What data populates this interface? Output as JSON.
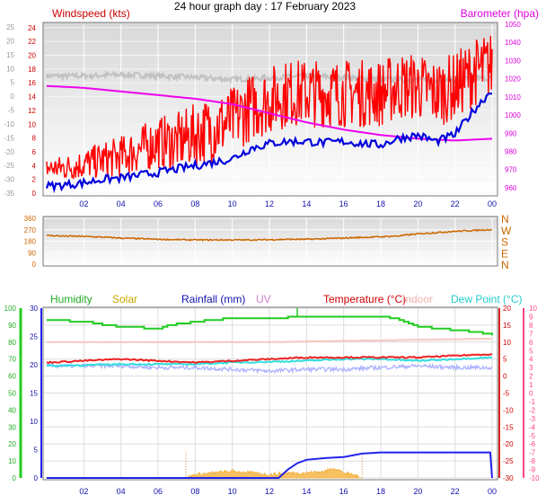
{
  "page_title": "24 hour graph day : 17 February 2023",
  "chart_data": [
    {
      "type": "line",
      "panel": "wind-baro",
      "title": "24 hour graph day : 17 February 2023",
      "x_ticks": [
        "02",
        "04",
        "06",
        "08",
        "10",
        "12",
        "14",
        "16",
        "18",
        "20",
        "22",
        "00"
      ],
      "left_axis": {
        "label": "Windspeed (kts)",
        "ticks": [
          "0",
          "2",
          "4",
          "6",
          "8",
          "10",
          "12",
          "14",
          "16",
          "18",
          "20",
          "22",
          "24"
        ],
        "range": [
          0,
          24.5
        ]
      },
      "outer_left_axis": {
        "ticks": [
          "-35",
          "-30",
          "-25",
          "-20",
          "-15",
          "-10",
          "-5",
          "0",
          "5",
          "10",
          "15",
          "20",
          "25"
        ],
        "range": [
          -35,
          26
        ]
      },
      "right_axis": {
        "label": "Barometer (hpa)",
        "ticks": [
          "960",
          "970",
          "980",
          "990",
          "1000",
          "1010",
          "1020",
          "1030",
          "1040",
          "1050"
        ],
        "range": [
          957,
          1050
        ]
      },
      "series": [
        {
          "name": "Windspeed (kts)",
          "role": "gust",
          "color": "#ff0000",
          "x": [
            0.0,
            1.0,
            2.0,
            3.0,
            4.0,
            5.0,
            6.0,
            7.0,
            8.0,
            9.0,
            10.0,
            11.0,
            12.0,
            13.0,
            14.0,
            15.0,
            16.0,
            17.0,
            18.0,
            19.0,
            20.0,
            21.0,
            22.0,
            23.0,
            24.0
          ],
          "y": [
            3.5,
            3.5,
            4,
            4.5,
            5,
            6,
            7,
            7,
            8,
            9,
            10,
            12,
            13,
            14,
            14,
            14,
            14,
            14,
            14,
            15,
            15,
            14,
            15,
            17,
            18
          ],
          "spread": 5
        },
        {
          "name": "Average wind",
          "role": "average",
          "color": "#0000dd",
          "x": [
            0.0,
            1.0,
            2.0,
            3.0,
            4.0,
            5.0,
            6.0,
            7.0,
            8.0,
            9.0,
            10.0,
            11.0,
            12.0,
            13.0,
            14.0,
            15.0,
            16.0,
            17.0,
            18.0,
            19.0,
            20.0,
            21.0,
            22.0,
            23.0,
            24.0
          ],
          "y": [
            1,
            1.2,
            1.5,
            2,
            2.2,
            2.6,
            3,
            3.5,
            4,
            4.5,
            5,
            6.5,
            7.2,
            7.5,
            7.5,
            7.3,
            7.5,
            7.2,
            7.0,
            8.0,
            8.4,
            7.5,
            8.5,
            12.0,
            15.0
          ]
        },
        {
          "name": "Barometer (hpa)",
          "role": "pressure",
          "color": "#ee00ee",
          "x": [
            0.0,
            2.0,
            4.0,
            6.0,
            8.0,
            10.0,
            12.0,
            14.0,
            16.0,
            18.0,
            20.0,
            22.0,
            23.0,
            24.0
          ],
          "y": [
            1016,
            1015,
            1013,
            1011,
            1009,
            1006,
            1001,
            996,
            992,
            989,
            987,
            986,
            986.5,
            987
          ]
        },
        {
          "name": "Background reference",
          "role": "grey-band",
          "color": "#c2c2c2",
          "x": [
            0.0,
            2.0,
            4.0,
            6.0,
            8.0,
            10.0,
            12.0,
            14.0,
            16.0,
            18.0,
            20.0,
            22.0,
            24.0
          ],
          "y": [
            17,
            17,
            17.2,
            17,
            16.8,
            16.5,
            16.7,
            17,
            16.8,
            16.5,
            16.4,
            16.5,
            16.7
          ]
        }
      ]
    },
    {
      "type": "line",
      "panel": "wind-direction",
      "x_ticks": [
        "02",
        "04",
        "06",
        "08",
        "10",
        "12",
        "14",
        "16",
        "18",
        "20",
        "22",
        "00"
      ],
      "left_axis": {
        "ticks": [
          "0",
          "90",
          "180",
          "270",
          "360"
        ],
        "range": [
          0,
          360
        ]
      },
      "right_axis": {
        "ticks": [
          "N",
          "W",
          "S",
          "E",
          "N"
        ]
      },
      "series": [
        {
          "name": "Wind direction",
          "color": "#cc6600",
          "x": [
            0.0,
            1.0,
            2.0,
            3.0,
            4.0,
            5.0,
            6.0,
            7.0,
            8.0,
            9.0,
            10.0,
            11.0,
            12.0,
            13.0,
            14.0,
            15.0,
            16.0,
            17.0,
            18.0,
            19.0,
            20.0,
            21.0,
            22.0,
            23.0,
            24.0
          ],
          "y": [
            225,
            220,
            218,
            212,
            205,
            200,
            195,
            192,
            190,
            190,
            190,
            190,
            192,
            195,
            195,
            200,
            205,
            210,
            215,
            222,
            238,
            248,
            258,
            265,
            272
          ]
        }
      ]
    },
    {
      "type": "line",
      "panel": "temperature-humidity",
      "x_ticks": [
        "02",
        "04",
        "06",
        "08",
        "10",
        "12",
        "14",
        "16",
        "18",
        "20",
        "22",
        "00"
      ],
      "legend": [
        "Humidity",
        "Solar",
        "Rainfall (mm)",
        "UV",
        "Temperature (°C)",
        "Indoor",
        "Dew Point (°C)"
      ],
      "axis_humidity": {
        "ticks": [
          "0",
          "10",
          "20",
          "30",
          "40",
          "50",
          "60",
          "70",
          "80",
          "90",
          "100"
        ],
        "range": [
          0,
          100
        ]
      },
      "axis_rainfall": {
        "ticks": [
          "0",
          "5",
          "10",
          "15",
          "20",
          "25",
          "30"
        ],
        "range": [
          0,
          30
        ]
      },
      "axis_temperature": {
        "ticks": [
          "-30",
          "-25",
          "-20",
          "-15",
          "-10",
          "-5",
          "0",
          "5",
          "10",
          "15",
          "20"
        ],
        "range": [
          -30,
          20
        ]
      },
      "axis_uv": {
        "ticks": [
          "-10",
          "-9",
          "-8",
          "-7",
          "-6",
          "-5",
          "-4",
          "-3",
          "-2",
          "-1",
          "0",
          "1",
          "2",
          "3",
          "4",
          "5",
          "6",
          "7",
          "8",
          "9",
          "10"
        ],
        "range": [
          -10,
          10
        ]
      },
      "series": [
        {
          "name": "Humidity",
          "color": "#22cc22",
          "axis": "humidity",
          "x": [
            0.0,
            2.0,
            3.0,
            4.0,
            6.0,
            6.5,
            8.0,
            10.0,
            12.0,
            14.0,
            16.0,
            18.0,
            19.0,
            20.0,
            21.0,
            22.0,
            23.0,
            24.0
          ],
          "y": [
            93,
            92,
            90,
            89,
            88,
            90,
            92,
            94,
            94,
            95,
            95,
            95,
            93,
            89,
            88,
            87,
            86,
            84
          ]
        },
        {
          "name": "Indoor",
          "color": "#f4c8c0",
          "axis": "temperature",
          "x": [
            0.0,
            12.0,
            24.0
          ],
          "y": [
            10,
            10,
            11
          ]
        },
        {
          "name": "Temperature (°C)",
          "color": "#ee2222",
          "axis": "temperature",
          "x": [
            0.0,
            2.0,
            4.0,
            6.0,
            8.0,
            10.0,
            12.0,
            14.0,
            16.0,
            18.0,
            20.0,
            22.0,
            24.0
          ],
          "y": [
            4,
            4.5,
            5,
            4.5,
            4,
            4.5,
            5,
            5.5,
            5.5,
            5.5,
            5.5,
            6,
            6.5
          ]
        },
        {
          "name": "Dew Point (°C)",
          "color": "#33dddd",
          "axis": "temperature",
          "x": [
            0.0,
            2.0,
            4.0,
            6.0,
            8.0,
            10.0,
            12.0,
            14.0,
            16.0,
            18.0,
            20.0,
            22.0,
            24.0
          ],
          "y": [
            3,
            3.2,
            3.5,
            3.5,
            3.5,
            4,
            4.2,
            4.5,
            5,
            5,
            4.5,
            5,
            5.5
          ]
        },
        {
          "name": "UV",
          "color": "#aab0ff",
          "axis": "temperature",
          "x": [
            0.0,
            2.0,
            4.0,
            6.0,
            8.0,
            10.0,
            12.0,
            14.0,
            16.0,
            18.0,
            20.0,
            22.0,
            24.0
          ],
          "y": [
            3,
            3,
            3,
            2.5,
            2.5,
            2,
            1.5,
            2,
            2,
            2.5,
            3,
            2.5,
            2.5
          ]
        },
        {
          "name": "Rainfall (mm)",
          "color": "#2222ee",
          "axis": "rainfall",
          "x": [
            0.0,
            12.5,
            13.0,
            13.5,
            14.0,
            15.0,
            16.0,
            17.0,
            18.0,
            20.0,
            22.0,
            23.9,
            24.0
          ],
          "y": [
            0,
            0,
            1.5,
            2.6,
            3.2,
            3.5,
            3.7,
            4.3,
            4.5,
            4.5,
            4.5,
            4.5,
            0
          ]
        },
        {
          "name": "Solar",
          "color": "#f0b040",
          "axis": "humidity",
          "x": [
            7.5,
            8.0,
            9.0,
            10.0,
            11.0,
            12.0,
            13.0,
            14.0,
            15.0,
            15.5,
            16.0,
            16.5,
            17.0
          ],
          "y": [
            0,
            2,
            3,
            4,
            3,
            2,
            3,
            3,
            4,
            6,
            3,
            2,
            0
          ]
        }
      ]
    }
  ]
}
